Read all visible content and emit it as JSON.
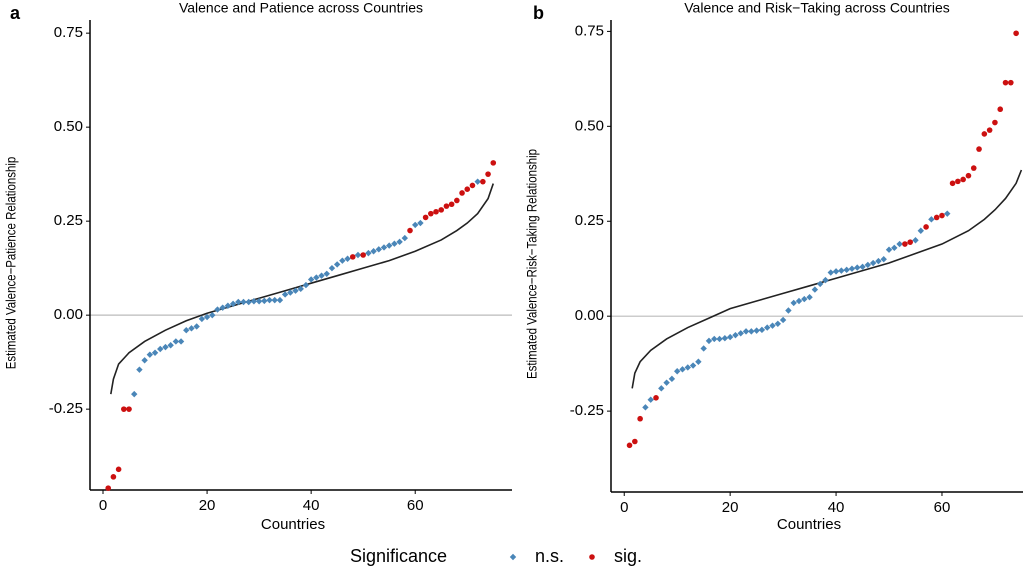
{
  "chart_data": [
    {
      "type": "scatter",
      "tag": "a",
      "title": "Valence and Patience across Countries",
      "ylabel": "Estimated Valence−Patience Relationship",
      "xlabel": "Countries",
      "xlim": [
        -2.5,
        78.6
      ],
      "ylim": [
        -0.465,
        0.785
      ],
      "xticks": [
        0,
        20,
        40,
        60
      ],
      "yticks": [
        -0.25,
        {
          "value": 0,
          "label": "0.00"
        },
        0.25,
        {
          "value": 0.5,
          "label": "0.50"
        },
        0.75
      ],
      "hline": 0,
      "series": [
        {
          "name": "n.s.",
          "color": "#4a86b8",
          "marker": "diamond",
          "x": [
            6,
            7,
            8,
            9,
            10,
            11,
            12,
            13,
            14,
            15,
            16,
            17,
            18,
            19,
            20,
            21,
            22,
            23,
            24,
            25,
            26,
            27,
            28,
            29,
            30,
            31,
            32,
            33,
            34,
            35,
            36,
            37,
            38,
            39,
            40,
            41,
            42,
            43,
            44,
            45,
            46,
            47,
            49,
            51,
            52,
            53,
            54,
            55,
            56,
            57,
            58,
            60,
            61,
            72
          ],
          "values": [
            -0.21,
            -0.145,
            -0.12,
            -0.105,
            -0.1,
            -0.09,
            -0.085,
            -0.08,
            -0.07,
            -0.07,
            -0.04,
            -0.035,
            -0.03,
            -0.01,
            -0.005,
            0,
            0.015,
            0.02,
            0.025,
            0.03,
            0.035,
            0.035,
            0.035,
            0.037,
            0.037,
            0.038,
            0.04,
            0.04,
            0.04,
            0.055,
            0.06,
            0.065,
            0.07,
            0.08,
            0.095,
            0.1,
            0.105,
            0.11,
            0.125,
            0.135,
            0.145,
            0.15,
            0.16,
            0.165,
            0.17,
            0.175,
            0.18,
            0.185,
            0.19,
            0.195,
            0.205,
            0.24,
            0.245,
            0.355
          ]
        },
        {
          "name": "sig.",
          "color": "#cc1010",
          "marker": "circle",
          "x": [
            1,
            2,
            3,
            4,
            5,
            48,
            50,
            59,
            62,
            63,
            64,
            65,
            66,
            67,
            68,
            69,
            70,
            71,
            73,
            74,
            75
          ],
          "values": [
            -0.46,
            -0.43,
            -0.41,
            -0.25,
            -0.25,
            0.155,
            0.16,
            0.225,
            0.26,
            0.27,
            0.275,
            0.28,
            0.29,
            0.295,
            0.305,
            0.325,
            0.335,
            0.345,
            0.355,
            0.375,
            0.405
          ]
        }
      ],
      "curve": {
        "color": "#222222",
        "x": [
          1.5,
          2,
          3,
          5,
          8,
          12,
          16,
          20,
          25,
          30,
          35,
          40,
          45,
          50,
          55,
          60,
          65,
          68,
          70,
          72,
          74,
          75
        ],
        "values": [
          -0.21,
          -0.17,
          -0.13,
          -0.1,
          -0.07,
          -0.04,
          -0.015,
          0.005,
          0.025,
          0.045,
          0.065,
          0.085,
          0.105,
          0.125,
          0.145,
          0.17,
          0.2,
          0.225,
          0.245,
          0.27,
          0.31,
          0.35
        ]
      }
    },
    {
      "type": "scatter",
      "tag": "b",
      "title": "Valence and Risk−Taking across Countries",
      "ylabel": "Estimated Valence−Risk−Taking Relationship",
      "xlabel": "Countries",
      "xlim": [
        -2.5,
        75.3
      ],
      "ylim": [
        -0.463,
        0.78
      ],
      "xticks": [
        0,
        20,
        40,
        60
      ],
      "yticks": [
        -0.25,
        {
          "value": 0,
          "label": "0.00"
        },
        0.25,
        {
          "value": 0.5,
          "label": "0.50"
        },
        0.75
      ],
      "hline": 0,
      "series": [
        {
          "name": "n.s.",
          "color": "#4a86b8",
          "marker": "diamond",
          "x": [
            4,
            5,
            7,
            8,
            9,
            10,
            11,
            12,
            13,
            14,
            15,
            16,
            17,
            18,
            19,
            20,
            21,
            22,
            23,
            24,
            25,
            26,
            27,
            28,
            29,
            30,
            31,
            32,
            33,
            34,
            35,
            36,
            37,
            38,
            39,
            40,
            41,
            42,
            43,
            44,
            45,
            46,
            47,
            48,
            49,
            50,
            51,
            52,
            55,
            56,
            58,
            61
          ],
          "values": [
            -0.24,
            -0.22,
            -0.19,
            -0.175,
            -0.165,
            -0.145,
            -0.14,
            -0.135,
            -0.13,
            -0.12,
            -0.085,
            -0.065,
            -0.06,
            -0.06,
            -0.058,
            -0.055,
            -0.05,
            -0.045,
            -0.04,
            -0.04,
            -0.038,
            -0.036,
            -0.03,
            -0.025,
            -0.02,
            -0.01,
            0.015,
            0.035,
            0.04,
            0.045,
            0.05,
            0.07,
            0.085,
            0.095,
            0.115,
            0.118,
            0.12,
            0.122,
            0.125,
            0.128,
            0.13,
            0.135,
            0.14,
            0.145,
            0.15,
            0.175,
            0.18,
            0.19,
            0.2,
            0.225,
            0.255,
            0.27
          ]
        },
        {
          "name": "sig.",
          "color": "#cc1010",
          "marker": "circle",
          "x": [
            1,
            2,
            3,
            6,
            53,
            54,
            57,
            59,
            60,
            62,
            63,
            64,
            65,
            66,
            67,
            68,
            69,
            70,
            71,
            72,
            73,
            74
          ],
          "values": [
            -0.34,
            -0.33,
            -0.27,
            -0.215,
            0.19,
            0.195,
            0.235,
            0.26,
            0.265,
            0.35,
            0.355,
            0.36,
            0.37,
            0.39,
            0.44,
            0.48,
            0.49,
            0.51,
            0.545,
            0.615,
            0.615,
            0.745
          ]
        }
      ],
      "curve": {
        "color": "#222222",
        "x": [
          1.5,
          2,
          3,
          5,
          8,
          12,
          16,
          20,
          25,
          30,
          35,
          40,
          45,
          50,
          55,
          60,
          65,
          68,
          70,
          72,
          74,
          75
        ],
        "values": [
          -0.19,
          -0.15,
          -0.12,
          -0.09,
          -0.06,
          -0.03,
          -0.005,
          0.02,
          0.04,
          0.06,
          0.08,
          0.1,
          0.12,
          0.14,
          0.165,
          0.19,
          0.225,
          0.255,
          0.28,
          0.31,
          0.35,
          0.385
        ]
      }
    }
  ],
  "legend": {
    "title": "Significance"
  }
}
